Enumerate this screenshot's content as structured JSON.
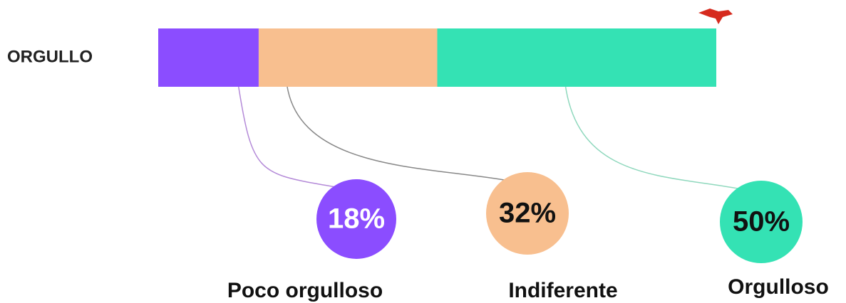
{
  "chart_data": {
    "type": "stacked-bar",
    "categories": [
      "ORGULLO"
    ],
    "xlim": [
      0,
      100
    ],
    "series": [
      {
        "name": "Poco orgulloso",
        "color": "#8b4dff",
        "values": [
          18
        ],
        "value_labels": [
          "18%"
        ]
      },
      {
        "name": "Indiferente",
        "color": "#f8bf8f",
        "values": [
          32
        ],
        "value_labels": [
          "32%"
        ]
      },
      {
        "name": "Orgulloso",
        "color": "#34e2b4",
        "values": [
          50
        ],
        "value_labels": [
          "50%"
        ]
      }
    ]
  }
}
